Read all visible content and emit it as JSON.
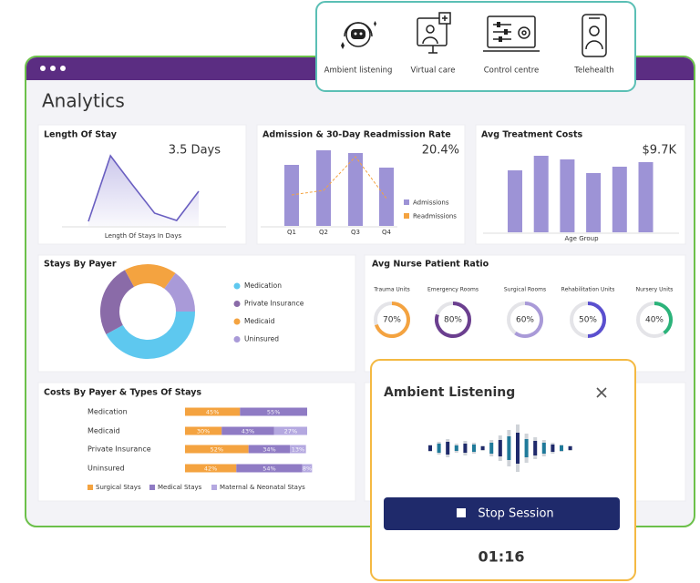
{
  "toolbar": {
    "items": [
      "Ambient listening",
      "Virtual care",
      "Control centre",
      "Telehealth"
    ]
  },
  "header": {
    "title": "Analytics"
  },
  "chart_data": [
    {
      "type": "area",
      "title": "Length Of Stay",
      "headline": "3.5 Days",
      "xlabel": "Length Of Stays In Days",
      "values": [
        5,
        77,
        45,
        14,
        6,
        38
      ],
      "color": "#6a5fc1"
    },
    {
      "type": "bar-line",
      "title": "Admission & 30-Day Readmission Rate",
      "headline": "20.4%",
      "categories": [
        "Q1",
        "Q2",
        "Q3",
        "Q4"
      ],
      "series": [
        {
          "name": "Admissions",
          "color": "#9d93d6",
          "values": [
            67,
            83,
            80,
            64
          ]
        },
        {
          "name": "Readmissions",
          "color": "#f4a340",
          "values": [
            34,
            39,
            76,
            30
          ]
        }
      ]
    },
    {
      "type": "bar",
      "title": "Avg Treatment Costs",
      "headline": "$9.7K",
      "xlabel": "Age Group",
      "values": [
        68,
        84,
        80,
        65,
        72,
        77
      ],
      "color": "#9d93d6"
    },
    {
      "type": "donut",
      "title": "Stays By Payer",
      "categories": [
        "Medication",
        "Private Insurance",
        "Medicaid",
        "Uninsured"
      ],
      "values": [
        42,
        25,
        18,
        15
      ],
      "colors": [
        "#5ec8ef",
        "#8a6ba8",
        "#f4a340",
        "#a99ad8"
      ]
    },
    {
      "type": "gauge",
      "title": "Avg Nurse Patient Ratio",
      "categories": [
        "Trauma Units",
        "Emergency Rooms",
        "Surgical Rooms",
        "Rehabilitation Units",
        "Nursery Units"
      ],
      "values": [
        70,
        80,
        60,
        50,
        40
      ],
      "value_labels": [
        "70%",
        "80%",
        "60%",
        "50%",
        "40%"
      ],
      "ylim": [
        0,
        100
      ],
      "colors": [
        "#f4a340",
        "#6b3f8f",
        "#a99ad8",
        "#5a4fcf",
        "#2bb37a"
      ]
    },
    {
      "type": "stacked-bar",
      "title": "Costs By Payer & Types Of Stays",
      "categories": [
        "Medication",
        "Medicaid",
        "Private Insurance",
        "Uninsured"
      ],
      "xlim": [
        0,
        100
      ],
      "series": [
        {
          "name": "Surgical Stays",
          "color": "#f4a340",
          "values": [
            45,
            30,
            52,
            42
          ],
          "value_labels": [
            "45%",
            "30%",
            "52%",
            "42%"
          ]
        },
        {
          "name": "Medical Stays",
          "color": "#8f7bc4",
          "values": [
            55,
            43,
            34,
            54
          ],
          "value_labels": [
            "55%",
            "43%",
            "34%",
            "54%"
          ]
        },
        {
          "name": "Maternal & Neonatal Stays",
          "color": "#b4a8e0",
          "values": [
            null,
            27,
            13,
            8
          ],
          "value_labels": [
            null,
            "27%",
            "13%",
            "8%"
          ]
        }
      ]
    }
  ],
  "popup": {
    "title": "Ambient Listening",
    "button": "Stop Session",
    "timer": "01:16"
  }
}
